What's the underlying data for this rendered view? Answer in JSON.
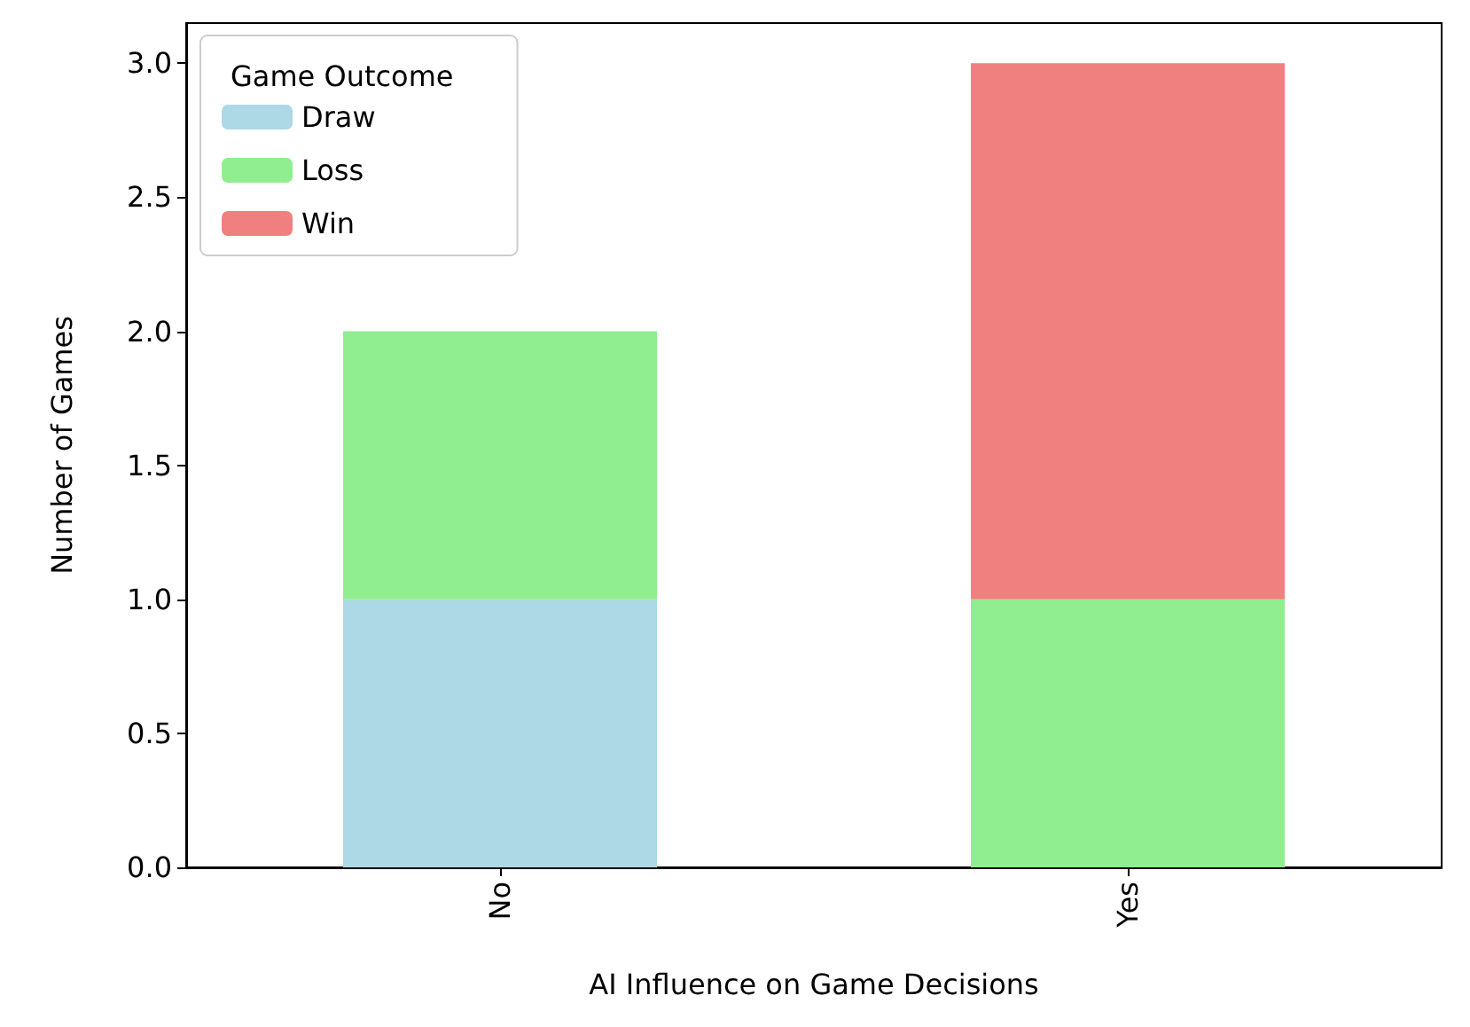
{
  "chart_data": {
    "type": "bar",
    "stacked": true,
    "xlabel": "AI Influence on Game Decisions",
    "ylabel": "Number of Games",
    "legend_title": "Game Outcome",
    "categories": [
      "No",
      "Yes"
    ],
    "series": [
      {
        "name": "Draw",
        "color": "#add8e6",
        "values": [
          1,
          0
        ]
      },
      {
        "name": "Loss",
        "color": "#90ee90",
        "values": [
          1,
          1
        ]
      },
      {
        "name": "Win",
        "color": "#f08080",
        "values": [
          0,
          2
        ]
      }
    ],
    "ylim": [
      0,
      3.15
    ],
    "yticks": [
      {
        "value": 0,
        "label": "0.0"
      },
      {
        "value": 0.5,
        "label": "0.5"
      },
      {
        "value": 1,
        "label": "1.0"
      },
      {
        "value": 1.5,
        "label": "1.5"
      },
      {
        "value": 2,
        "label": "2.0"
      },
      {
        "value": 2.5,
        "label": "2.5"
      },
      {
        "value": 3,
        "label": "3.0"
      }
    ],
    "grid": false,
    "legend": "top left"
  }
}
